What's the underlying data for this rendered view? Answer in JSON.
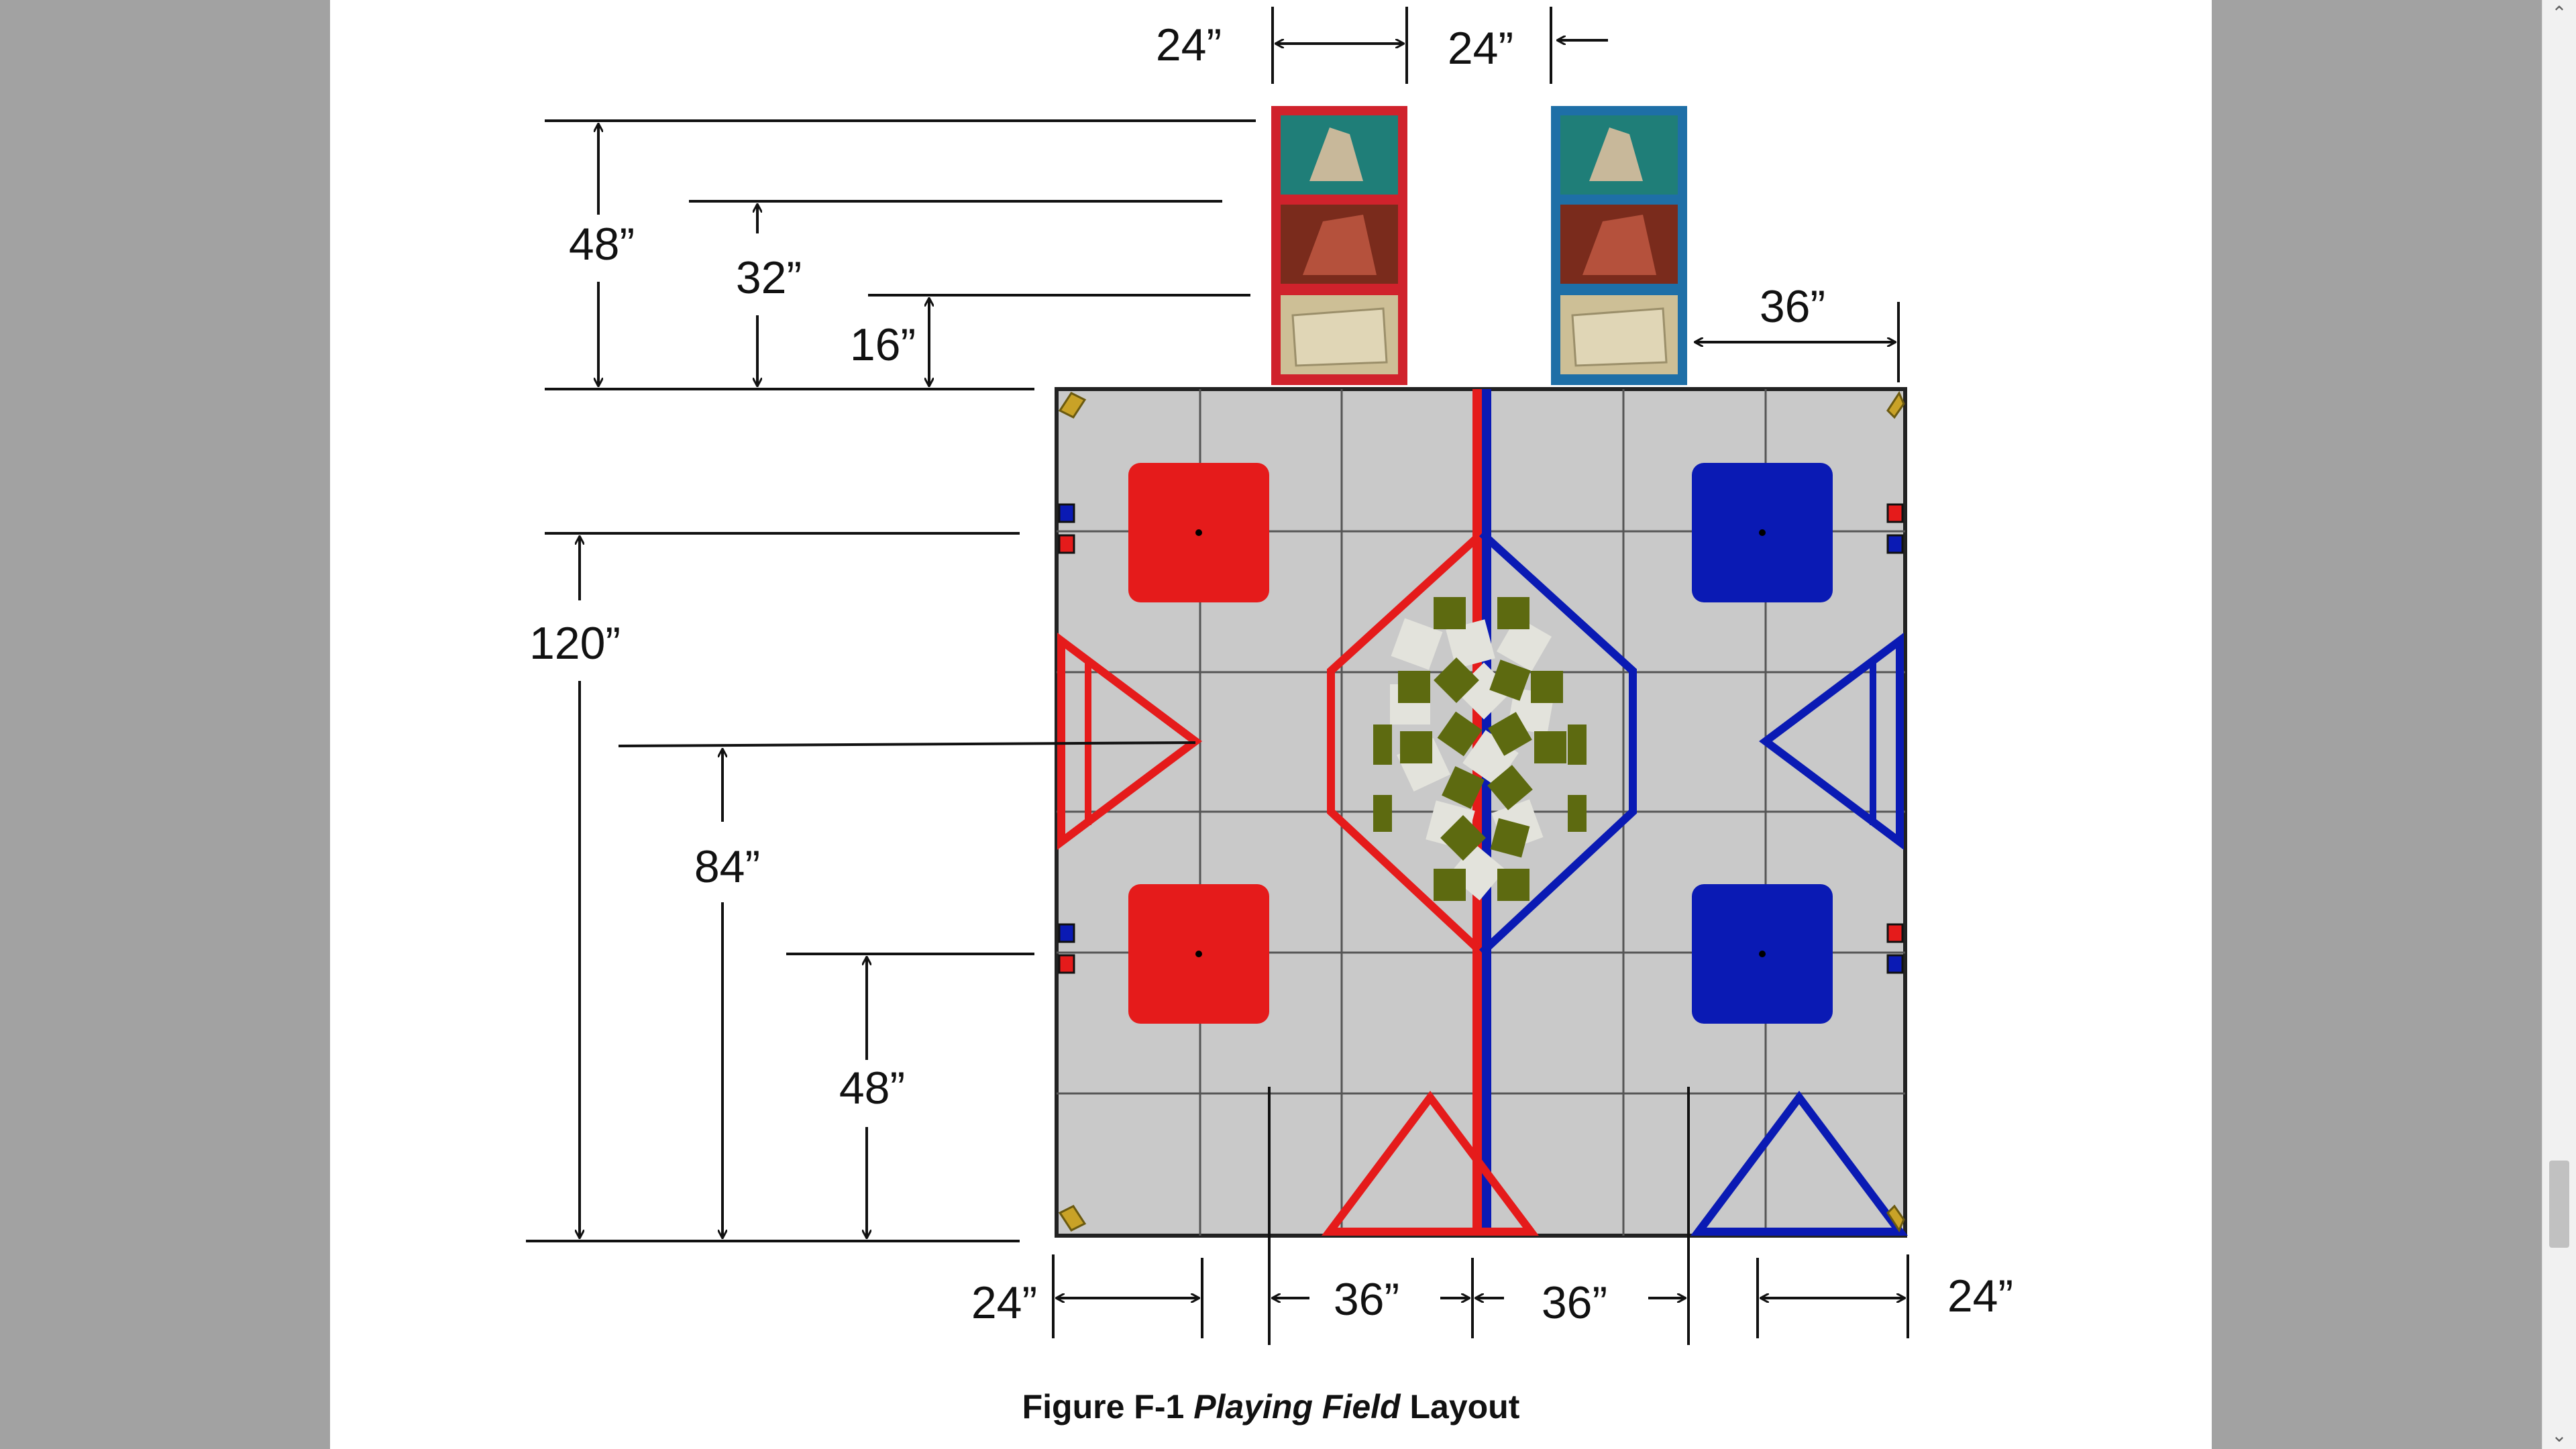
{
  "figure": {
    "caption_prefix": "Figure F-1 ",
    "caption_italic": "Playing Field",
    "caption_suffix": " Layout",
    "dimensions": {
      "top_left_width": "24”",
      "top_right_gap": "24”",
      "tower_height": "48”",
      "middle_panel_height": "32”",
      "lower_panel_height": "16”",
      "tower_offset": "36”",
      "field_length": "120”",
      "triangle_line": "84”",
      "lower_zone": "48”",
      "bottom_left_24": "24”",
      "bottom_center_left_36": "36”",
      "bottom_center_right_36": "36”",
      "bottom_right_24": "24”"
    },
    "colors": {
      "red_alliance": "#e51b1b",
      "blue_alliance": "#0a1ab4",
      "field_floor": "#c9c9c9",
      "grid_line": "#555555",
      "game_piece": "#5d6a10",
      "light_piece": "#e3e3dc"
    }
  },
  "scrollbar": {
    "up_icon": "chevron-up-icon",
    "down_icon": "chevron-down-icon"
  }
}
